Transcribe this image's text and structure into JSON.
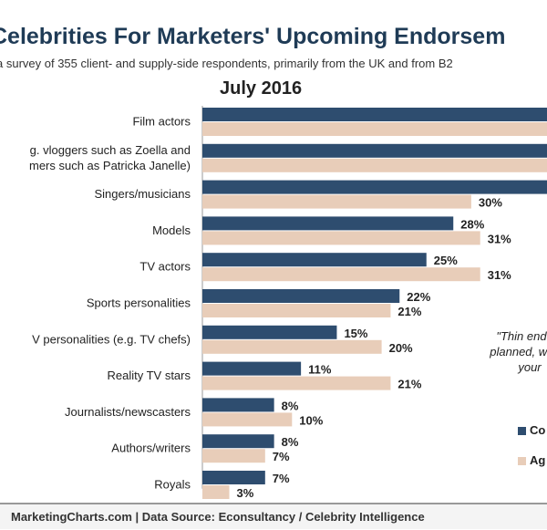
{
  "title": "Celebrities For Marketers' Upcoming Endorsem",
  "subtitle": "a survey of 355 client- and supply-side respondents, primarily from the UK and from B2",
  "date_label": "July 2016",
  "quote_text": "\"Thin endors planned, would your",
  "footer": "MarketingCharts.com | Data Source: Econsultancy / Celebrity Intelligence",
  "colors": {
    "series1": "#2e4d6f",
    "series2": "#e8cdb9"
  },
  "chart_data": {
    "type": "bar",
    "orientation": "horizontal",
    "categories": [
      "Film actors",
      "g. vloggers such as Zoella and\nmers such as Patricka Janelle)",
      "Singers/musicians",
      "Models",
      "TV actors",
      "Sports personalities",
      "V personalities (e.g. TV chefs)",
      "Reality TV stars",
      "Journalists/newscasters",
      "Authors/writers",
      "Royals"
    ],
    "series": [
      {
        "name": "Co",
        "values": [
          null,
          null,
          null,
          28,
          25,
          22,
          15,
          11,
          8,
          8,
          7
        ],
        "color": "#2e4d6f"
      },
      {
        "name": "Ag",
        "values": [
          null,
          null,
          30,
          31,
          31,
          21,
          20,
          21,
          10,
          7,
          3
        ],
        "color": "#e8cdb9"
      }
    ],
    "value_suffix": "%",
    "xlabel": "",
    "ylabel": ""
  }
}
